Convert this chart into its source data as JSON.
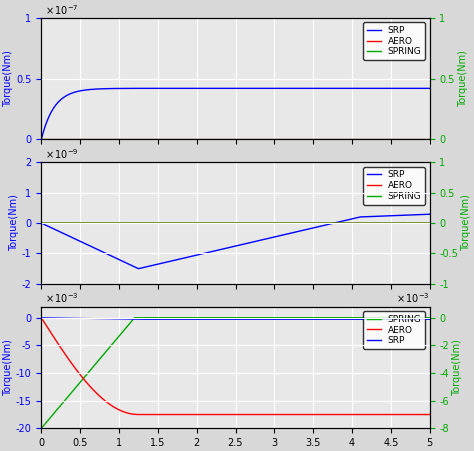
{
  "xlim": [
    0,
    5
  ],
  "xticks": [
    0,
    0.5,
    1,
    1.5,
    2,
    2.5,
    3,
    3.5,
    4,
    4.5,
    5
  ],
  "plot1": {
    "ylim_left": [
      0,
      1e-07
    ],
    "ylim_right": [
      0,
      1
    ],
    "yticks_left": [
      0,
      5e-08,
      1e-07
    ],
    "yticks_right": [
      0,
      0.5,
      1
    ],
    "scale_label_left": "x 10^{-7}",
    "ylabel_left": "Torque(Nm)",
    "ylabel_right": "Torque(Nm)",
    "legend": [
      "SRP",
      "AERO",
      "SPRING"
    ],
    "legend_colors": [
      "#0000ff",
      "#ff0000",
      "#00aa00"
    ]
  },
  "plot2": {
    "ylim_left": [
      -2e-09,
      2e-09
    ],
    "ylim_right": [
      -1,
      1
    ],
    "yticks_left": [
      -2e-09,
      -1e-09,
      0,
      1e-09,
      2e-09
    ],
    "yticks_right": [
      -1,
      -0.5,
      0,
      0.5,
      1
    ],
    "scale_label_left": "x 10^{-9}",
    "ylabel_left": "Torque(Nm)",
    "ylabel_right": "Torque(Nm)",
    "legend": [
      "SRP",
      "AERO",
      "SPRING"
    ],
    "legend_colors": [
      "#0000ff",
      "#ff0000",
      "#00aa00"
    ]
  },
  "plot3": {
    "ylim_left": [
      -0.02,
      0.002
    ],
    "ylim_right": [
      -0.008,
      0.0005
    ],
    "yticks_left": [
      -0.02,
      -0.015,
      -0.01,
      -0.005,
      0
    ],
    "yticks_right": [
      -0.008,
      -0.006,
      -0.004,
      -0.002,
      0
    ],
    "scale_label_left": "x 10^{-3}",
    "scale_label_right": "x 10^{-3}",
    "ylabel_left": "Torque(Nm)",
    "ylabel_right": "Torque(Nm)",
    "legend": [
      "SPRING",
      "AERO",
      "SRP"
    ],
    "legend_colors": [
      "#00aa00",
      "#ff0000",
      "#0000ff"
    ]
  },
  "bg_color": "#e8e8e8",
  "grid_color": "#ffffff",
  "line_blue": "#0000ff",
  "line_red": "#ff0000",
  "line_green": "#00aa00",
  "fig_bg": "#d8d8d8"
}
